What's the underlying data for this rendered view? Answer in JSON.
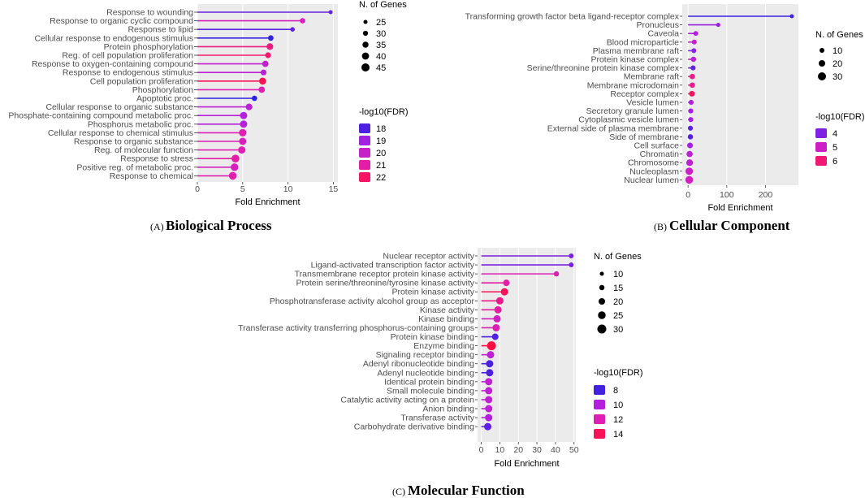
{
  "chart_data": [
    {
      "type": "lollipop",
      "panel_label": "(A)",
      "panel_title": "Biological Process",
      "xlabel": "Fold Enrichment",
      "xlim": [
        0,
        15.5
      ],
      "xticks": [
        0,
        5,
        10,
        15
      ],
      "size_legend_title": "N. of Genes",
      "size_legend": [
        25,
        30,
        35,
        40,
        45
      ],
      "color_legend_title": "-log10(FDR)",
      "color_legend": [
        18,
        19,
        20,
        21,
        22
      ],
      "color_scale": {
        "min": 17.5,
        "max": 22.5,
        "colors": [
          "#2222e0",
          "#b020e0",
          "#e020b0",
          "#ff1040"
        ]
      },
      "size_range": [
        22,
        47
      ],
      "categories": [
        "Response to wounding",
        "Response to organic cyclic compound",
        "Response to lipid",
        "Cellular response to endogenous stimulus",
        "Protein phosphorylation",
        "Reg. of cell population proliferation",
        "Response to oxygen-containing compound",
        "Response to endogenous stimulus",
        "Cell population proliferation",
        "Phosphorylation",
        "Apoptotic proc.",
        "Cellular response to organic substance",
        "Phosphate-containing compound metabolic proc.",
        "Phosphorus metabolic proc.",
        "Cellular response to chemical stimulus",
        "Response to organic substance",
        "Reg. of molecular function",
        "Response to stress",
        "Positive reg. of metabolic proc.",
        "Response to chemical"
      ],
      "fold_enrichment": [
        14.7,
        11.6,
        10.5,
        8.1,
        8.0,
        7.8,
        7.5,
        7.3,
        7.2,
        7.1,
        6.3,
        5.7,
        5.1,
        5.1,
        5.0,
        5.0,
        4.9,
        4.2,
        4.1,
        3.9
      ],
      "n_genes": [
        22,
        30,
        25,
        31,
        38,
        33,
        36,
        33,
        40,
        36,
        30,
        38,
        42,
        42,
        43,
        42,
        42,
        45,
        44,
        45
      ],
      "neg_log10_fdr": [
        18.3,
        20.5,
        18.2,
        17.7,
        21.5,
        21.8,
        19.8,
        19.6,
        22.2,
        20.8,
        17.6,
        19.6,
        19.4,
        19.4,
        20.7,
        20.6,
        20.8,
        21.0,
        20.4,
        20.9
      ]
    },
    {
      "type": "lollipop",
      "panel_label": "(B)",
      "panel_title": "Cellular Component",
      "xlabel": "Fold Enrichment",
      "xlim": [
        -15,
        285
      ],
      "xticks": [
        0,
        100,
        200
      ],
      "size_legend_title": "N. of Genes",
      "size_legend": [
        10,
        20,
        30
      ],
      "color_legend_title": "-log10(FDR)",
      "color_legend": [
        4,
        5,
        6
      ],
      "color_scale": {
        "min": 3.3,
        "max": 6.5,
        "colors": [
          "#2222e0",
          "#b020e0",
          "#e020b0",
          "#ff1040"
        ]
      },
      "size_range": [
        5,
        35
      ],
      "categories": [
        "Transforming growth factor beta ligand-receptor complex",
        "Pronucleus",
        "Caveola",
        "Blood microparticle",
        "Plasma membrane raft",
        "Protein kinase complex",
        "Serine/threonine protein kinase complex",
        "Membrane raft",
        "Membrane microdomain",
        "Receptor complex",
        "Vesicle lumen",
        "Secretory granule lumen",
        "Cytoplasmic vesicle lumen",
        "External side of plasma membrane",
        "Side of membrane",
        "Cell surface",
        "Chromatin",
        "Chromosome",
        "Nucleoplasm",
        "Nuclear lumen"
      ],
      "fold_enrichment": [
        268,
        78,
        20,
        16,
        15,
        14,
        13,
        11,
        11,
        10,
        8,
        7,
        7,
        6,
        6,
        5,
        4,
        4,
        3,
        3
      ],
      "n_genes": [
        5,
        6,
        10,
        11,
        11,
        14,
        12,
        15,
        15,
        17,
        12,
        12,
        12,
        12,
        14,
        17,
        21,
        24,
        30,
        32
      ],
      "neg_log10_fdr": [
        3.5,
        4.2,
        4.4,
        4.8,
        4.1,
        4.7,
        3.8,
        5.8,
        5.8,
        6.2,
        4.4,
        4.3,
        4.3,
        3.7,
        3.7,
        4.3,
        4.6,
        4.7,
        5.0,
        5.1
      ]
    },
    {
      "type": "lollipop",
      "panel_label": "(C)",
      "panel_title": "Molecular Function",
      "xlabel": "Fold Enrichment",
      "xlim": [
        -2,
        51
      ],
      "xticks": [
        0,
        10,
        20,
        30,
        40,
        50
      ],
      "size_legend_title": "N. of Genes",
      "size_legend": [
        10,
        15,
        20,
        25,
        30
      ],
      "color_legend_title": "-log10(FDR)",
      "color_legend": [
        8,
        10,
        12,
        14
      ],
      "color_scale": {
        "min": 7.5,
        "max": 14.5,
        "colors": [
          "#2222e0",
          "#b020e0",
          "#e020b0",
          "#ff1040"
        ]
      },
      "size_range": [
        8,
        32
      ],
      "categories": [
        "Nuclear receptor activity",
        "Ligand-activated transcription factor activity",
        "Transmembrane receptor protein kinase activity",
        "Protein serine/threonine/tyrosine kinase activity",
        "Protein kinase activity",
        "Phosphotransferase activity alcohol group as acceptor",
        "Kinase activity",
        "Kinase binding",
        "Transferase activity transferring phosphorus-containing groups",
        "Protein kinase binding",
        "Enzyme binding",
        "Signaling receptor binding",
        "Adenyl ribonucleotide binding",
        "Adenyl nucleotide binding",
        "Identical protein binding",
        "Small molecule binding",
        "Catalytic activity acting on a protein",
        "Anion binding",
        "Transferase activity",
        "Carbohydrate derivative binding"
      ],
      "fold_enrichment": [
        48.5,
        48.5,
        40.5,
        13.5,
        12.5,
        10.0,
        9.0,
        8.5,
        8.0,
        7.5,
        5.5,
        5.0,
        4.5,
        4.5,
        4.0,
        4.0,
        4.0,
        4.0,
        4.0,
        3.5
      ],
      "n_genes": [
        6,
        6,
        10,
        16,
        20,
        20,
        20,
        20,
        20,
        16,
        28,
        20,
        20,
        20,
        20,
        20,
        20,
        20,
        20,
        20
      ],
      "neg_log10_fdr": [
        9.0,
        9.0,
        12.0,
        12.5,
        14.0,
        13.0,
        12.5,
        11.5,
        12.0,
        8.2,
        14.5,
        10.5,
        8.2,
        8.2,
        10.5,
        10.5,
        10.5,
        10.5,
        10.0,
        8.5
      ]
    }
  ]
}
